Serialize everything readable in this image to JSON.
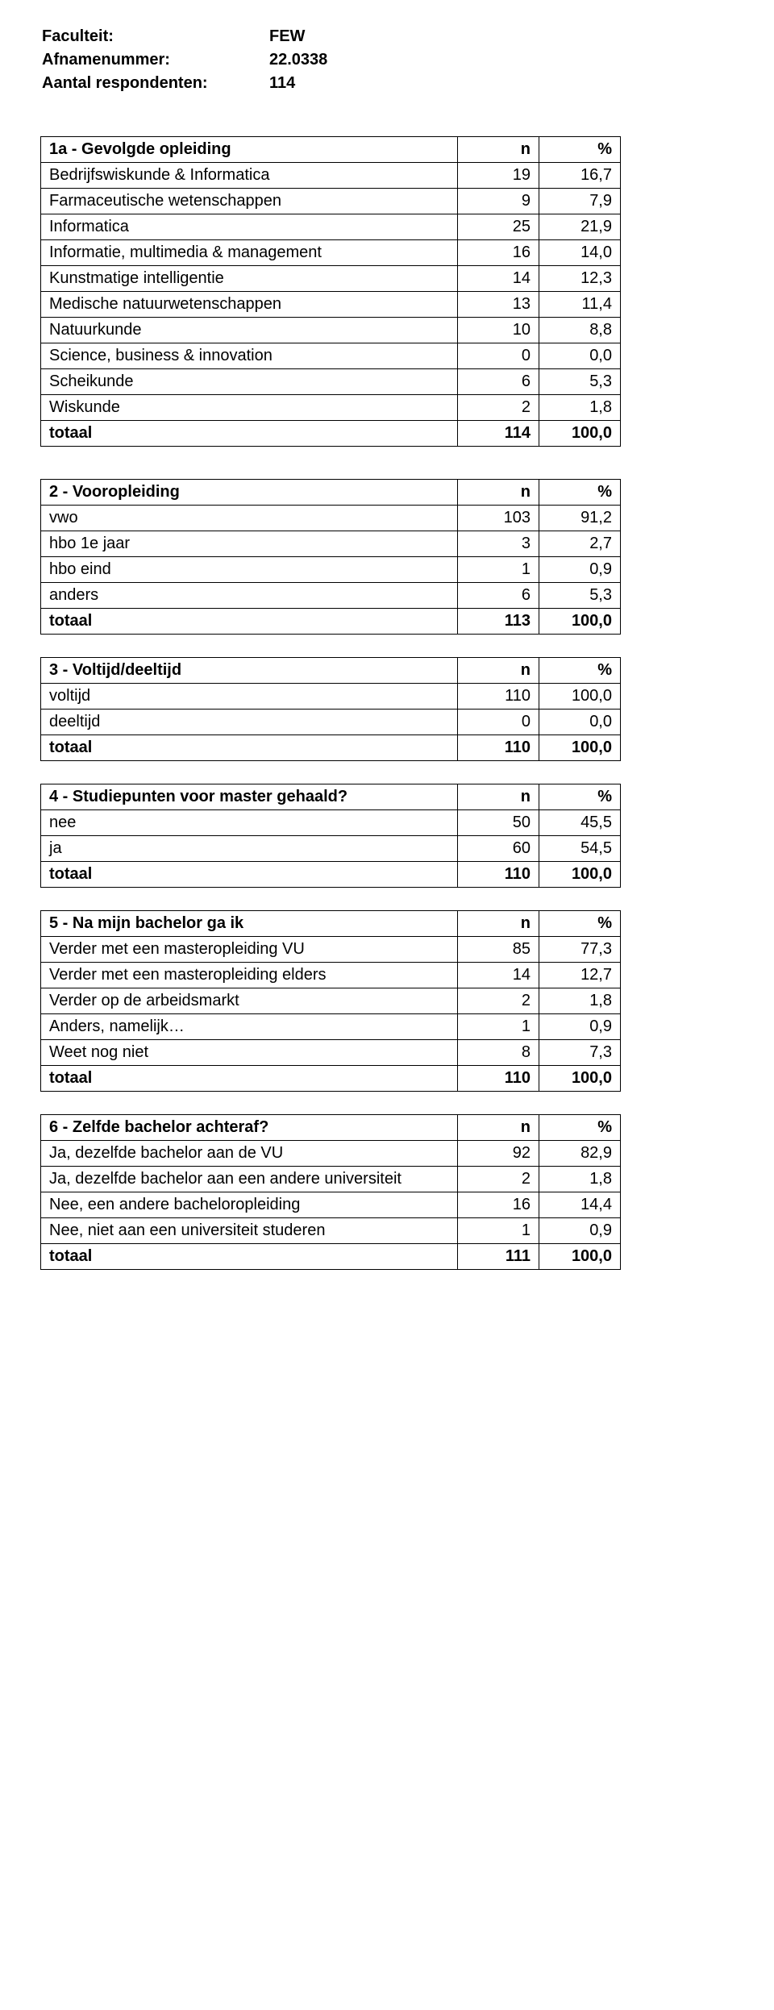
{
  "header": {
    "rows": [
      {
        "label": "Faculteit:",
        "value": "FEW"
      },
      {
        "label": "Afnamenummer:",
        "value": "22.0338"
      },
      {
        "label": "Aantal respondenten:",
        "value": "114"
      }
    ]
  },
  "tables": [
    {
      "title": "1a - Gevolgde opleiding",
      "col_n": "n",
      "col_pct": "%",
      "rows": [
        {
          "label": "Bedrijfswiskunde & Informatica",
          "n": "19",
          "pct": "16,7"
        },
        {
          "label": "Farmaceutische wetenschappen",
          "n": "9",
          "pct": "7,9"
        },
        {
          "label": "Informatica",
          "n": "25",
          "pct": "21,9"
        },
        {
          "label": "Informatie, multimedia & management",
          "n": "16",
          "pct": "14,0"
        },
        {
          "label": "Kunstmatige intelligentie",
          "n": "14",
          "pct": "12,3"
        },
        {
          "label": "Medische natuurwetenschappen",
          "n": "13",
          "pct": "11,4"
        },
        {
          "label": "Natuurkunde",
          "n": "10",
          "pct": "8,8"
        },
        {
          "label": "Science, business & innovation",
          "n": "0",
          "pct": "0,0"
        },
        {
          "label": "Scheikunde",
          "n": "6",
          "pct": "5,3"
        },
        {
          "label": "Wiskunde",
          "n": "2",
          "pct": "1,8"
        }
      ],
      "total": {
        "label": "totaal",
        "n": "114",
        "pct": "100,0"
      }
    },
    {
      "title": "2 - Vooropleiding",
      "col_n": "n",
      "col_pct": "%",
      "rows": [
        {
          "label": "vwo",
          "n": "103",
          "pct": "91,2"
        },
        {
          "label": "hbo 1e jaar",
          "n": "3",
          "pct": "2,7"
        },
        {
          "label": "hbo eind",
          "n": "1",
          "pct": "0,9"
        },
        {
          "label": "anders",
          "n": "6",
          "pct": "5,3"
        }
      ],
      "total": {
        "label": "totaal",
        "n": "113",
        "pct": "100,0"
      }
    },
    {
      "title": "3 - Voltijd/deeltijd",
      "col_n": "n",
      "col_pct": "%",
      "rows": [
        {
          "label": "voltijd",
          "n": "110",
          "pct": "100,0"
        },
        {
          "label": "deeltijd",
          "n": "0",
          "pct": "0,0"
        }
      ],
      "total": {
        "label": "totaal",
        "n": "110",
        "pct": "100,0"
      }
    },
    {
      "title": "4 - Studiepunten voor master gehaald?",
      "col_n": "n",
      "col_pct": "%",
      "rows": [
        {
          "label": "nee",
          "n": "50",
          "pct": "45,5"
        },
        {
          "label": "ja",
          "n": "60",
          "pct": "54,5"
        }
      ],
      "total": {
        "label": "totaal",
        "n": "110",
        "pct": "100,0"
      }
    },
    {
      "title": "5 - Na mijn bachelor ga ik",
      "col_n": "n",
      "col_pct": "%",
      "rows": [
        {
          "label": "Verder met een masteropleiding VU",
          "n": "85",
          "pct": "77,3"
        },
        {
          "label": "Verder met een masteropleiding elders",
          "n": "14",
          "pct": "12,7"
        },
        {
          "label": "Verder op de arbeidsmarkt",
          "n": "2",
          "pct": "1,8"
        },
        {
          "label": "Anders, namelijk…",
          "n": "1",
          "pct": "0,9"
        },
        {
          "label": "Weet nog niet",
          "n": "8",
          "pct": "7,3"
        }
      ],
      "total": {
        "label": "totaal",
        "n": "110",
        "pct": "100,0"
      }
    },
    {
      "title": "6 - Zelfde bachelor achteraf?",
      "col_n": "n",
      "col_pct": "%",
      "rows": [
        {
          "label": "Ja, dezelfde bachelor aan de VU",
          "n": "92",
          "pct": "82,9"
        },
        {
          "label": "Ja, dezelfde bachelor aan een andere universiteit",
          "n": "2",
          "pct": "1,8"
        },
        {
          "label": "Nee, een andere bacheloropleiding",
          "n": "16",
          "pct": "14,4"
        },
        {
          "label": "Nee, niet aan een universiteit studeren",
          "n": "1",
          "pct": "0,9"
        }
      ],
      "total": {
        "label": "totaal",
        "n": "111",
        "pct": "100,0"
      }
    }
  ]
}
